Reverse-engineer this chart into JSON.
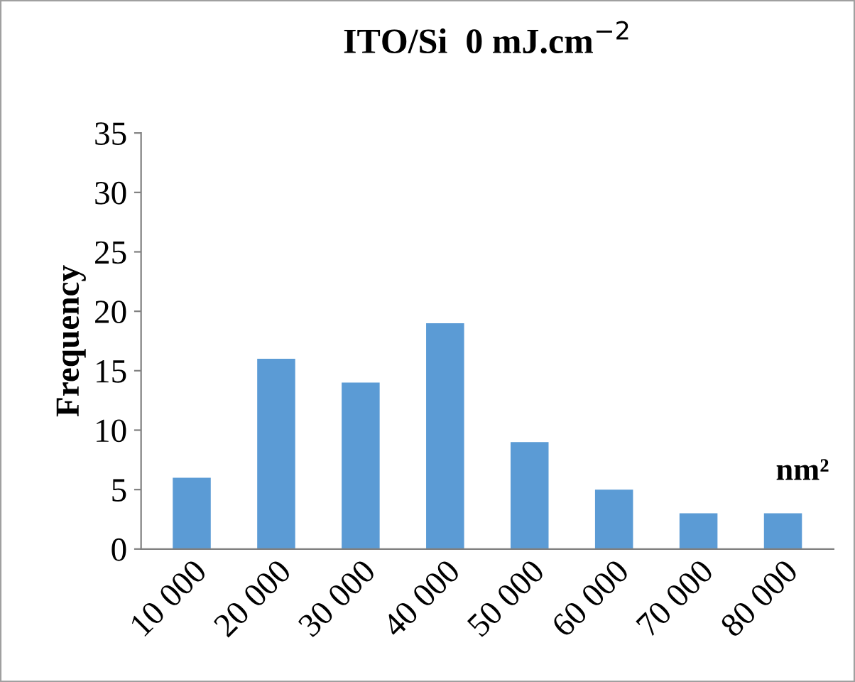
{
  "chart_data": {
    "type": "bar",
    "title": "ITO/Si  0 mJ.cm$^{−2}$",
    "ylabel": "Frequency",
    "categories": [
      "10 000",
      "20 000",
      "30 000",
      "40 000",
      "50 000",
      "60 000",
      "70 000",
      "80 000"
    ],
    "values": [
      6,
      16,
      14,
      19,
      9,
      5,
      3,
      3
    ],
    "color": "#5b9bd5",
    "ylim": [
      0,
      35
    ],
    "yticks": [
      0,
      5,
      10,
      15,
      20,
      25,
      30,
      35
    ],
    "grid": false,
    "legend": false,
    "annotations": [
      "nm²"
    ]
  }
}
